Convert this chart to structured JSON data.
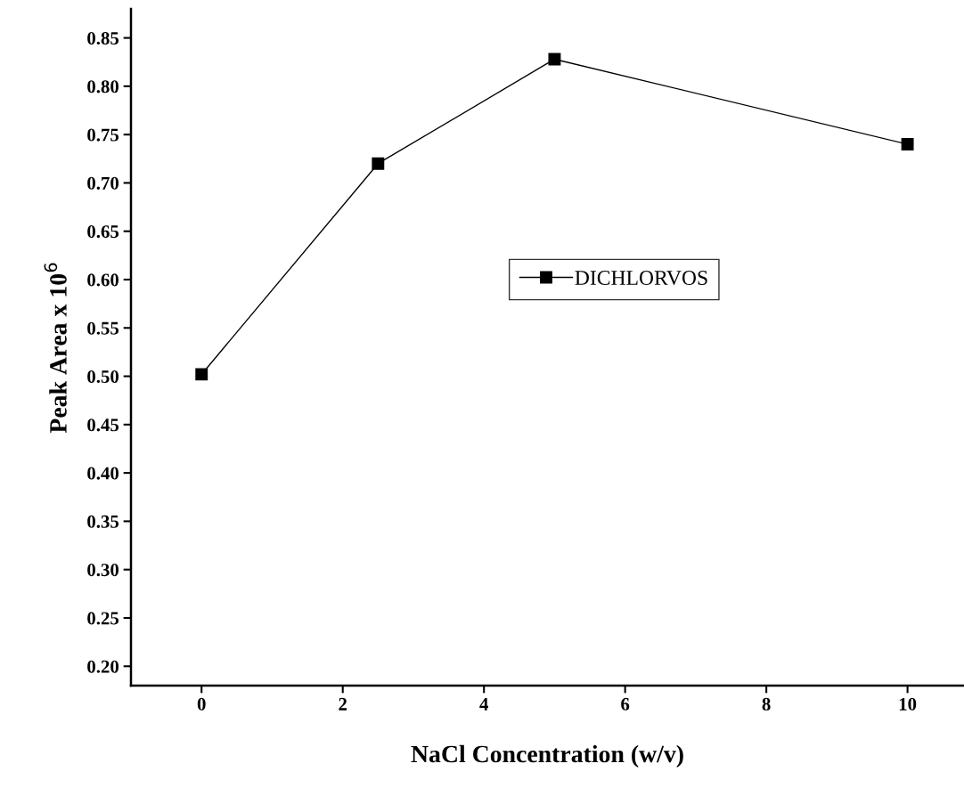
{
  "chart_data": {
    "type": "line",
    "xlabel": "NaCl Concentration (w/v)",
    "ylabel": "Peak Area x 10$^{6}$",
    "x": [
      0,
      2.5,
      5,
      10
    ],
    "series": [
      {
        "name": "DICHLORVOS",
        "color": "#000000",
        "values": [
          0.502,
          0.72,
          0.828,
          0.74
        ]
      }
    ],
    "xlim": [
      -1,
      10.8
    ],
    "xticks": [
      0,
      2,
      4,
      6,
      8,
      10
    ],
    "ylim": [
      0.18,
      0.88
    ],
    "yticks": [
      {
        "value": 0.2,
        "label": "0.20"
      },
      {
        "value": 0.25,
        "label": "0.25"
      },
      {
        "value": 0.3,
        "label": "0.30"
      },
      {
        "value": 0.35,
        "label": "0.35"
      },
      {
        "value": 0.4,
        "label": "0.40"
      },
      {
        "value": 0.45,
        "label": "0.45"
      },
      {
        "value": 0.5,
        "label": "0.50"
      },
      {
        "value": 0.55,
        "label": "0.55"
      },
      {
        "value": 0.6,
        "label": "0.60"
      },
      {
        "value": 0.65,
        "label": "0.65"
      },
      {
        "value": 0.7,
        "label": "0.70"
      },
      {
        "value": 0.75,
        "label": "0.75"
      },
      {
        "value": 0.8,
        "label": "0.80"
      },
      {
        "value": 0.85,
        "label": "0.85"
      }
    ],
    "marker": "square",
    "line_style": "solid",
    "grid": false,
    "legend": "center"
  }
}
